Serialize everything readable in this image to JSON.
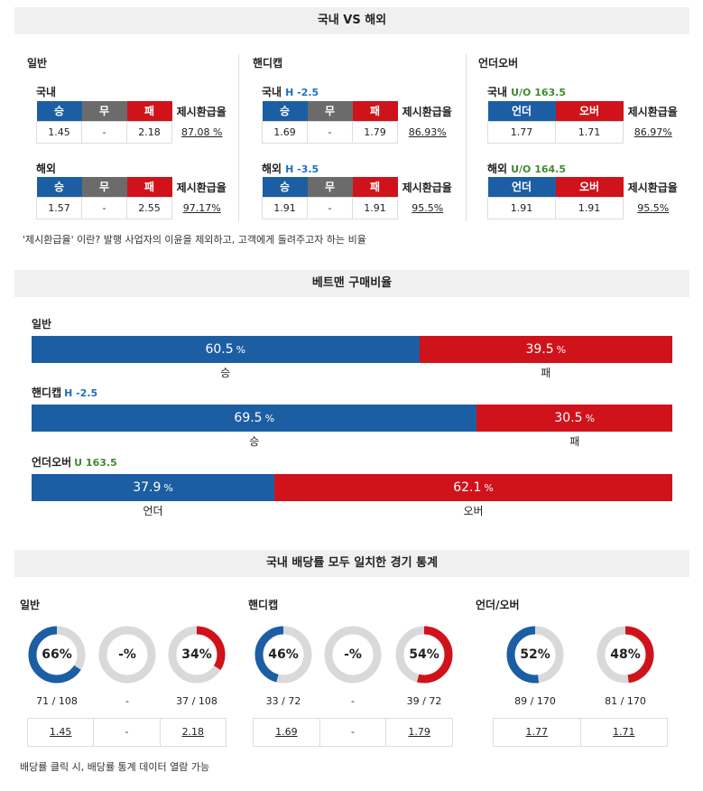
{
  "section1": {
    "title": "국내 VS 해외",
    "columns": [
      {
        "title": "일반",
        "rows": [
          {
            "label": "국내",
            "hv": "",
            "headers": [
              "승",
              "무",
              "패"
            ],
            "values": [
              "1.45",
              "-",
              "2.18"
            ],
            "tr_head": "제시환급율",
            "tr": "87.08 %"
          },
          {
            "label": "해외",
            "hv": "",
            "headers": [
              "승",
              "무",
              "패"
            ],
            "values": [
              "1.57",
              "-",
              "2.55"
            ],
            "tr_head": "제시환급율",
            "tr": "97.17%"
          }
        ]
      },
      {
        "title": "핸디캡",
        "rows": [
          {
            "label": "국내",
            "hv": "H -2.5",
            "headers": [
              "승",
              "무",
              "패"
            ],
            "values": [
              "1.69",
              "-",
              "1.79"
            ],
            "tr_head": "제시환급율",
            "tr": "86.93%"
          },
          {
            "label": "해외",
            "hv": "H -3.5",
            "headers": [
              "승",
              "무",
              "패"
            ],
            "values": [
              "1.91",
              "-",
              "1.91"
            ],
            "tr_head": "제시환급율",
            "tr": "95.5%"
          }
        ]
      },
      {
        "title": "언더오버",
        "rows": [
          {
            "label": "국내",
            "hv": "U/O 163.5",
            "headers": [
              "언더",
              "오버"
            ],
            "values": [
              "1.77",
              "1.71"
            ],
            "tr_head": "제시환급율",
            "tr": "86.97%"
          },
          {
            "label": "해외",
            "hv": "U/O 164.5",
            "headers": [
              "언더",
              "오버"
            ],
            "values": [
              "1.91",
              "1.91"
            ],
            "tr_head": "제시환급율",
            "tr": "95.5%"
          }
        ]
      }
    ],
    "note": "'제시환급율' 이란? 발행 사업자의 이윤을 제외하고, 고객에게 돌려주고자 하는 비율"
  },
  "section2": {
    "title": "베트맨 구매비율",
    "bars": [
      {
        "label": "일반",
        "hv": "",
        "left_pct": 60.5,
        "left_text": "60.5",
        "right_text": "39.5",
        "left_name": "승",
        "right_name": "패"
      },
      {
        "label": "핸디캡",
        "hv": "H -2.5",
        "left_pct": 69.5,
        "left_text": "69.5",
        "right_text": "30.5",
        "left_name": "승",
        "right_name": "패"
      },
      {
        "label": "언더오버",
        "hv": "U 163.5",
        "left_pct": 37.9,
        "left_text": "37.9",
        "right_text": "62.1",
        "left_name": "언더",
        "right_name": "오버"
      }
    ],
    "pct_sign": "%"
  },
  "section3": {
    "title": "국내 배당률 모두 일치한 경기 통계",
    "groups": [
      {
        "title": "일반",
        "donuts": [
          {
            "pct": 66,
            "text": "66%",
            "side": "left",
            "count": "71 / 108",
            "odds": "1.45"
          },
          {
            "pct": 0,
            "text": "-%",
            "side": "none",
            "count": "-",
            "odds": "-"
          },
          {
            "pct": 34,
            "text": "34%",
            "side": "right",
            "count": "37 / 108",
            "odds": "2.18"
          }
        ]
      },
      {
        "title": "핸디캡",
        "donuts": [
          {
            "pct": 46,
            "text": "46%",
            "side": "left",
            "count": "33 / 72",
            "odds": "1.69"
          },
          {
            "pct": 0,
            "text": "-%",
            "side": "none",
            "count": "-",
            "odds": "-"
          },
          {
            "pct": 54,
            "text": "54%",
            "side": "right",
            "count": "39 / 72",
            "odds": "1.79"
          }
        ]
      },
      {
        "title": "언더/오버",
        "donuts": [
          {
            "pct": 52,
            "text": "52%",
            "side": "left",
            "count": "89 / 170",
            "odds": "1.77"
          },
          {
            "pct": 48,
            "text": "48%",
            "side": "right",
            "count": "81 / 170",
            "odds": "1.71"
          }
        ]
      }
    ],
    "note": "배당률 클릭 시, 배당률 통계 데이터 열람 가능"
  },
  "colors": {
    "blue": "#1c5ea3",
    "red": "#d0121a",
    "gray": "#6b6b6b",
    "track": "#d9d9d9"
  }
}
